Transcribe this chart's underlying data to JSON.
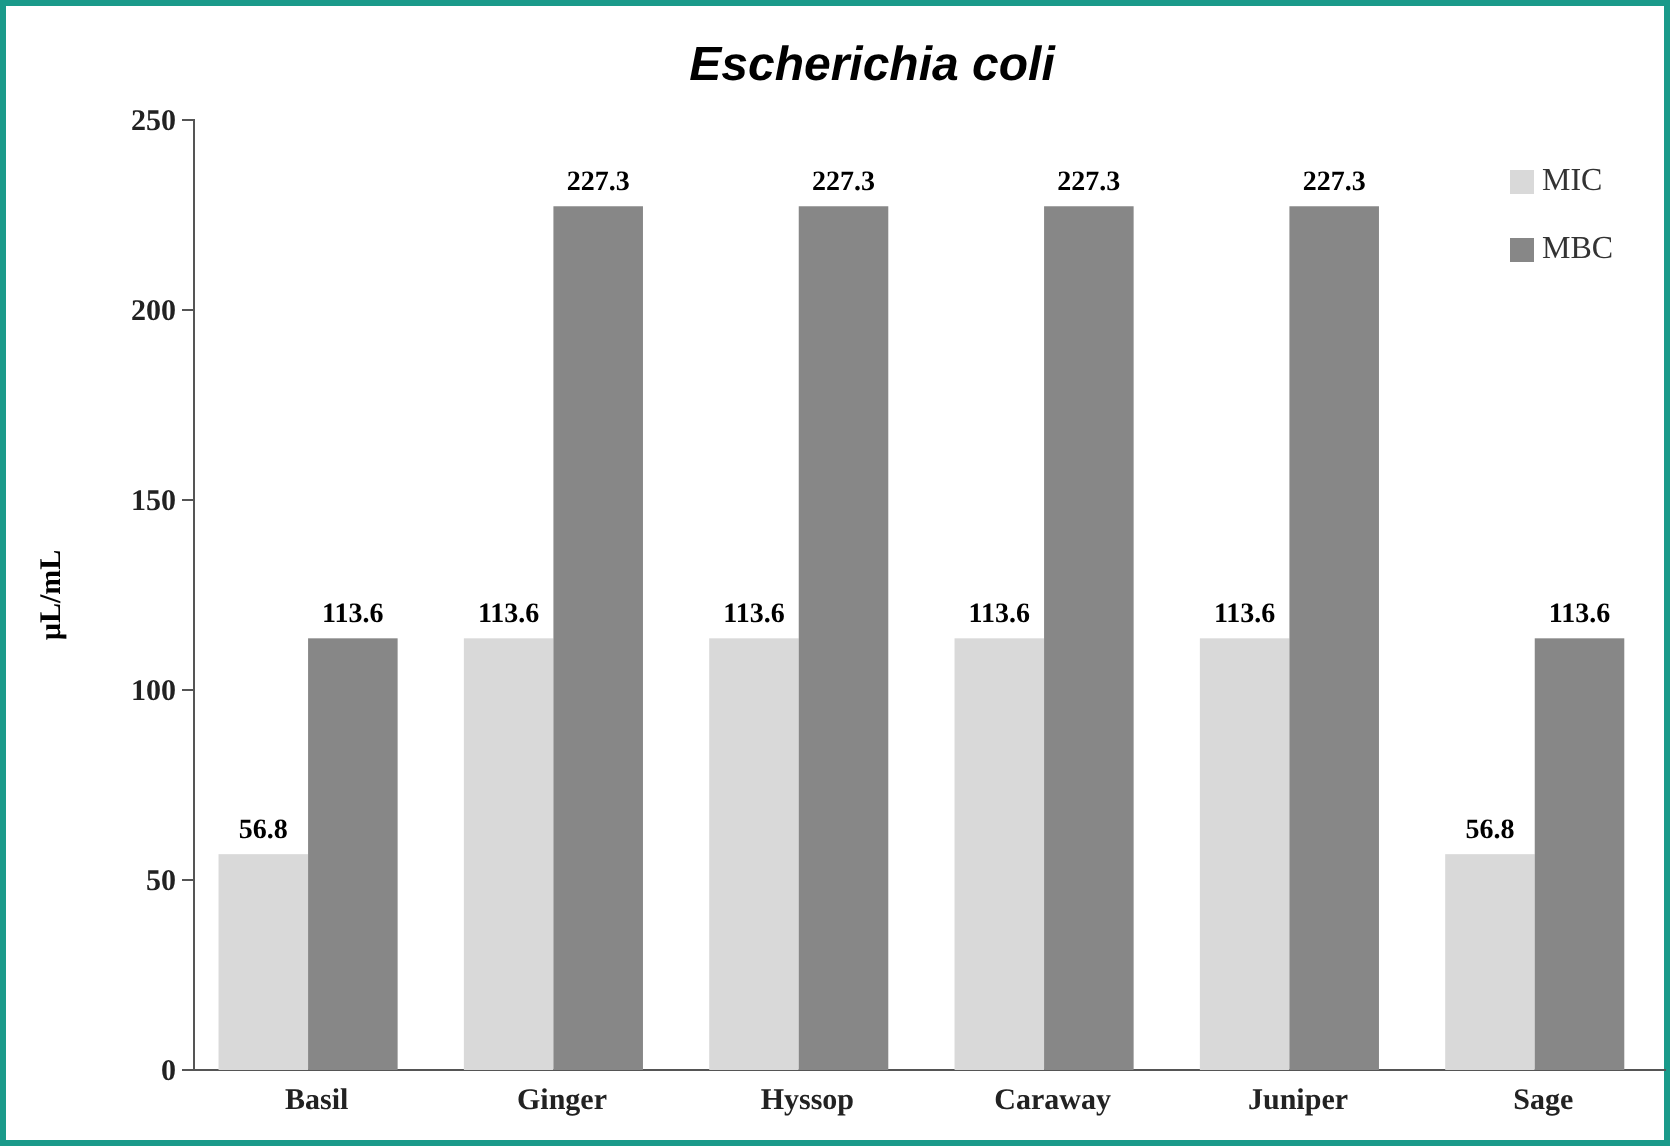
{
  "chart_data": {
    "type": "bar",
    "title": "Escherichia coli",
    "ylabel": "µL/mL",
    "categories": [
      "Basil",
      "Ginger",
      "Hyssop",
      "Caraway",
      "Juniper",
      "Sage"
    ],
    "series": [
      {
        "name": "MIC",
        "color": "#d9d9d9",
        "values": [
          56.8,
          113.6,
          113.6,
          113.6,
          113.6,
          56.8
        ]
      },
      {
        "name": "MBC",
        "color": "#878787",
        "values": [
          113.6,
          227.3,
          227.3,
          227.3,
          227.3,
          113.6
        ]
      }
    ],
    "ylim": [
      0,
      250
    ],
    "yticks": [
      0,
      50,
      100,
      150,
      200,
      250
    ],
    "grid": false,
    "legend": "top right",
    "data_labels": true
  }
}
